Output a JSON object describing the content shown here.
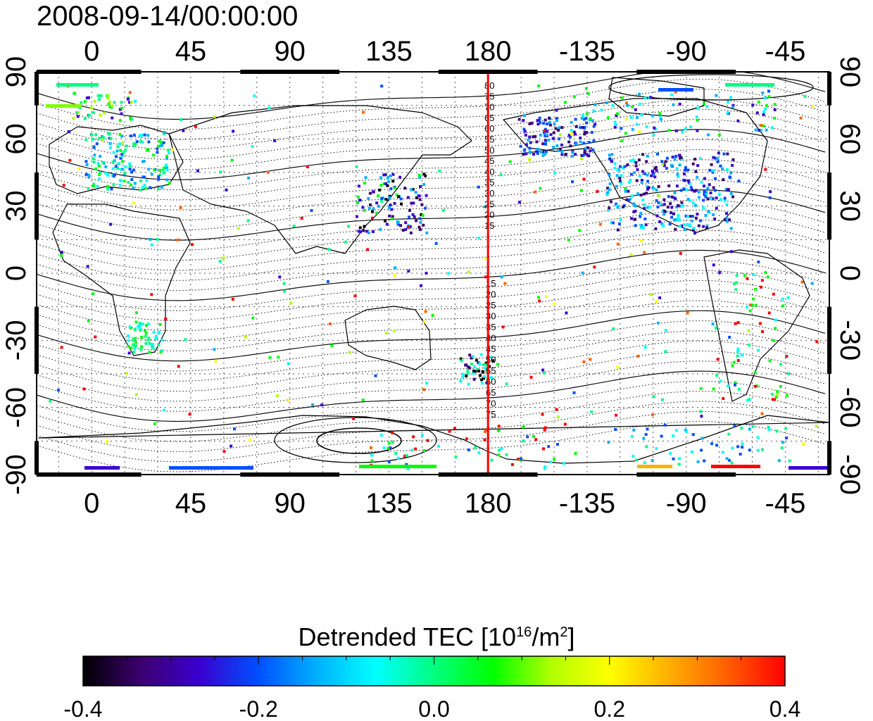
{
  "title": "2008-09-14/00:00:00",
  "map": {
    "lon_ticks": [
      "0",
      "45",
      "90",
      "135",
      "180",
      "-135",
      "-90",
      "-45"
    ],
    "lat_ticks": [
      "90",
      "60",
      "30",
      "0",
      "-30",
      "-60",
      "-90"
    ],
    "contour_labels_north": [
      "80",
      "75",
      "70",
      "65",
      "60",
      "55",
      "50",
      "45",
      "40",
      "35",
      "30",
      "25",
      "20",
      "15"
    ],
    "contour_labels_south": [
      "15",
      "20",
      "25",
      "30",
      "35",
      "40",
      "45",
      "50",
      "55",
      "60",
      "65",
      "70",
      "75"
    ],
    "meridian_marker_color": "#ff0000",
    "meridian_marker_lon": 180
  },
  "colorbar": {
    "title_main": "Detrended TEC  [10",
    "title_sup1": "16",
    "title_mid": "/m",
    "title_sup2": "2",
    "title_end": "]",
    "ticks": [
      "-0.4",
      "-0.2",
      "0.0",
      "0.2",
      "0.4"
    ],
    "range": [
      -0.4,
      0.4
    ],
    "colors": [
      "#000000",
      "#3c0070",
      "#3a00d0",
      "#0050ff",
      "#00b0ff",
      "#00ffff",
      "#00ff80",
      "#00ff00",
      "#b0ff00",
      "#ffff00",
      "#ffb000",
      "#ff6000",
      "#ff0000"
    ]
  }
}
